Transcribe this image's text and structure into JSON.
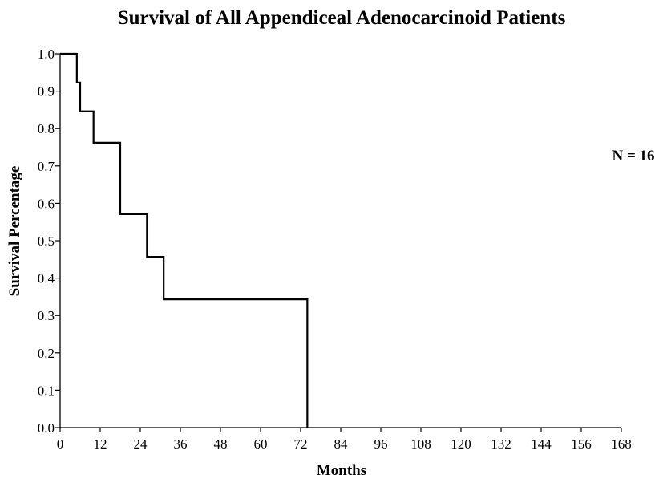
{
  "chart_data": {
    "type": "line",
    "style": "step",
    "title": "Survival of All Appendiceal Adenocarcinoid Patients",
    "xlabel": "Months",
    "ylabel": "Survival Percentage",
    "xlim": [
      0,
      168
    ],
    "ylim": [
      0,
      1
    ],
    "x_ticks": [
      "0",
      "12",
      "24",
      "36",
      "48",
      "60",
      "72",
      "84",
      "96",
      "108",
      "120",
      "132",
      "144",
      "156",
      "168"
    ],
    "y_ticks": [
      "0.0",
      "0.1",
      "0.2",
      "0.3",
      "0.4",
      "0.5",
      "0.6",
      "0.7",
      "0.8",
      "0.9",
      "1.0"
    ],
    "annotation": "N = 16",
    "grid": false,
    "series": [
      {
        "x": [
          0,
          5,
          6,
          10,
          18,
          26,
          31,
          74,
          74
        ],
        "y": [
          1.0,
          0.923,
          0.846,
          0.762,
          0.571,
          0.457,
          0.343,
          0.343,
          0.0
        ]
      }
    ],
    "colors": {
      "line": "#000000",
      "background": "#ffffff"
    }
  }
}
